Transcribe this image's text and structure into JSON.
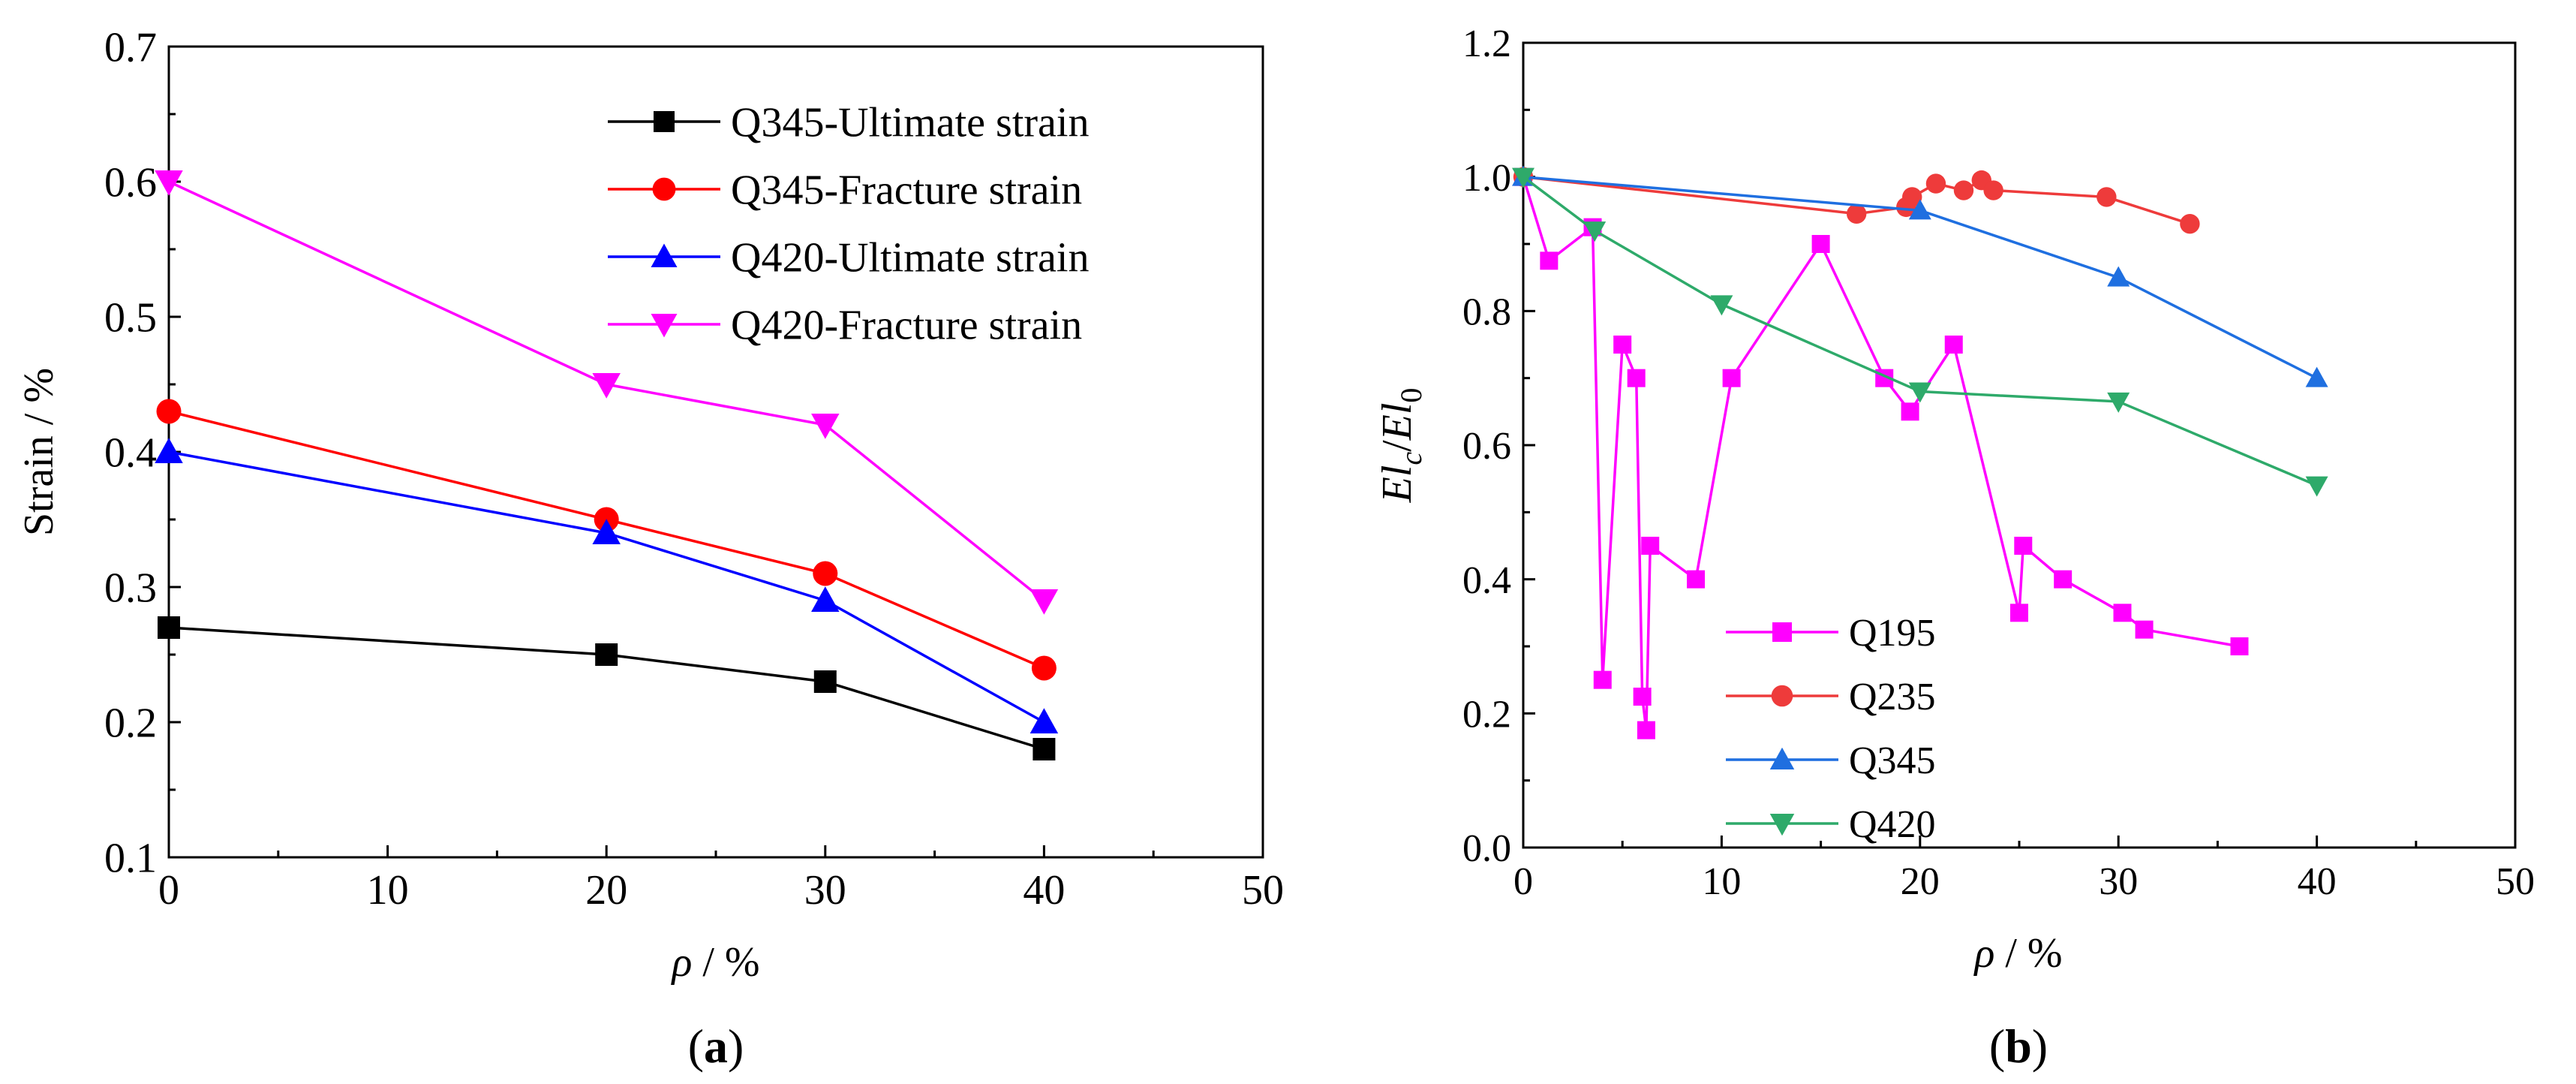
{
  "chart_data": [
    {
      "type": "line",
      "panel_label_parts": [
        "(",
        "a",
        ")"
      ],
      "xlabel": {
        "symbol": "ρ",
        "rest": " / %"
      },
      "ylabel": "Strain / %",
      "xlim": [
        0,
        50
      ],
      "ylim": [
        0.1,
        0.7
      ],
      "xticks": [
        "0",
        "10",
        "20",
        "30",
        "40",
        "50"
      ],
      "yticks": [
        "0.1",
        "0.2",
        "0.3",
        "0.4",
        "0.5",
        "0.6",
        "0.7"
      ],
      "legend_position": "top-right",
      "series": [
        {
          "name": "Q345-Ultimate strain",
          "color": "#000000",
          "marker": "square",
          "x": [
            0,
            20,
            30,
            40
          ],
          "y": [
            0.27,
            0.25,
            0.23,
            0.18
          ]
        },
        {
          "name": "Q345-Fracture strain",
          "color": "#ff0000",
          "marker": "circle",
          "x": [
            0,
            20,
            30,
            40
          ],
          "y": [
            0.43,
            0.35,
            0.31,
            0.24
          ]
        },
        {
          "name": "Q420-Ultimate strain",
          "color": "#0000ff",
          "marker": "triangle-up",
          "x": [
            0,
            20,
            30,
            40
          ],
          "y": [
            0.4,
            0.34,
            0.29,
            0.2
          ]
        },
        {
          "name": "Q420-Fracture strain",
          "color": "#ff00ff",
          "marker": "triangle-down",
          "x": [
            0,
            20,
            30,
            40
          ],
          "y": [
            0.6,
            0.45,
            0.42,
            0.29
          ]
        }
      ]
    },
    {
      "type": "line",
      "panel_label_parts": [
        "(",
        "b",
        ")"
      ],
      "xlabel": {
        "symbol": "ρ",
        "rest": " / %"
      },
      "ylabel": {
        "a": "El",
        "a_sub": "c",
        "slash": "/",
        "b": "El",
        "b_sub": "0"
      },
      "xlim": [
        0,
        50
      ],
      "ylim": [
        0,
        1.2
      ],
      "xticks": [
        "0",
        "10",
        "20",
        "30",
        "40",
        "50"
      ],
      "yticks": [
        "0.0",
        "0.2",
        "0.4",
        "0.6",
        "0.8",
        "1.0",
        "1.2"
      ],
      "legend_position": "bottom-left",
      "series": [
        {
          "name": "Q195",
          "color": "#ff00ff",
          "marker": "square",
          "x": [
            0,
            1.3,
            3.5,
            4.0,
            5.0,
            5.7,
            6.0,
            6.2,
            6.4,
            8.7,
            10.5,
            15.0,
            18.2,
            19.5,
            21.7,
            25.0,
            25.2,
            27.2,
            30.2,
            31.3,
            36.1
          ],
          "y": [
            1.0,
            0.875,
            0.925,
            0.25,
            0.75,
            0.7,
            0.225,
            0.175,
            0.45,
            0.4,
            0.7,
            0.9,
            0.7,
            0.65,
            0.75,
            0.35,
            0.45,
            0.4,
            0.35,
            0.325,
            0.3
          ]
        },
        {
          "name": "Q235",
          "color": "#ee3b3b",
          "marker": "circle",
          "x": [
            0,
            16.8,
            19.3,
            19.6,
            20.8,
            22.2,
            23.1,
            23.7,
            29.4,
            33.6
          ],
          "y": [
            1.0,
            0.945,
            0.955,
            0.97,
            0.99,
            0.98,
            0.995,
            0.98,
            0.97,
            0.93
          ]
        },
        {
          "name": "Q345",
          "color": "#1f6fe0",
          "marker": "triangle-up",
          "x": [
            0,
            20,
            30,
            40
          ],
          "y": [
            1.0,
            0.95,
            0.85,
            0.7
          ]
        },
        {
          "name": "Q420",
          "color": "#2eaa6a",
          "marker": "triangle-down",
          "x": [
            0,
            3.6,
            10,
            20,
            30,
            40
          ],
          "y": [
            1.0,
            0.92,
            0.81,
            0.68,
            0.665,
            0.54
          ]
        }
      ]
    }
  ]
}
